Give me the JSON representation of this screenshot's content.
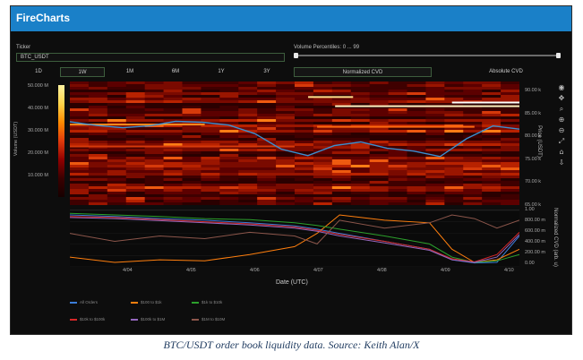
{
  "app": {
    "title": "FireCharts"
  },
  "controls": {
    "ticker_label": "Ticker",
    "ticker_value": "BTC_USDT",
    "volume_label": "Volume Percentiles: 0 ... 99",
    "volume_range": [
      0,
      99
    ],
    "timeframes": [
      "1D",
      "1W",
      "1M",
      "6M",
      "1Y",
      "3Y"
    ],
    "active_timeframe": "1W",
    "cvd_modes": [
      "Normalized CVD",
      "Absolute CVD"
    ],
    "active_cvd_mode": "Normalized CVD"
  },
  "toolbar": {
    "icons": [
      "plotly-logo-icon",
      "pan-icon",
      "zoom-icon",
      "zoom-in-icon",
      "zoom-out-icon",
      "autoscale-icon",
      "reset-axes-icon",
      "download-icon"
    ]
  },
  "colors": {
    "header": "#1a80c8",
    "price_line": "#3a8fd0"
  },
  "chart_data": [
    {
      "type": "heatmap",
      "colorbar_title": "Volume (USDT)",
      "colorbar_ticks": [
        "50.000 M",
        "40.000 M",
        "30.000 M",
        "20.000 M",
        "10.000 M"
      ],
      "y_title": "Price (USDT)",
      "y_ticks": [
        "90.00 k",
        "85.00 k",
        "80.00 k",
        "75.00 k",
        "70.00 k",
        "65.00 k"
      ],
      "ylim": [
        65000,
        92000
      ],
      "price_series": {
        "x": [
          "4/03 00:00",
          "4/03 12:00",
          "4/04 00:00",
          "4/04 12:00",
          "4/05 00:00",
          "4/05 12:00",
          "4/06 00:00",
          "4/06 12:00",
          "4/07 00:00",
          "4/07 06:00",
          "4/07 12:00",
          "4/08 00:00",
          "4/08 12:00",
          "4/09 00:00",
          "4/09 06:00",
          "4/09 12:00",
          "4/10 00:00",
          "4/10 06:00"
        ],
        "y": [
          83200,
          82400,
          81900,
          82300,
          83300,
          83100,
          82500,
          80600,
          77200,
          75800,
          78000,
          78800,
          77400,
          76800,
          75600,
          79500,
          82300,
          81600
        ]
      }
    },
    {
      "type": "line",
      "xlabel": "Date (UTC)",
      "x_ticks": [
        "4/04",
        "4/05",
        "4/06",
        "4/07",
        "4/08",
        "4/09",
        "4/10"
      ],
      "y_title": "Normalized CVD (arb. u)",
      "y_ticks": [
        "1.00",
        "800.00 m",
        "600.00 m",
        "400.00 m",
        "200.00 m",
        "0.00"
      ],
      "ylim": [
        0,
        1
      ],
      "x": [
        0,
        0.1,
        0.2,
        0.3,
        0.4,
        0.5,
        0.55,
        0.6,
        0.7,
        0.8,
        0.85,
        0.9,
        0.95,
        1.0
      ],
      "series": [
        {
          "name": "All Orders",
          "color": "#3b7dd8",
          "values": [
            0.95,
            0.92,
            0.88,
            0.85,
            0.8,
            0.74,
            0.68,
            0.6,
            0.45,
            0.3,
            0.1,
            0.04,
            0.05,
            0.55
          ]
        },
        {
          "name": "$100 to $1k",
          "color": "#ff7f0e",
          "values": [
            0.15,
            0.05,
            0.1,
            0.08,
            0.2,
            0.35,
            0.6,
            0.95,
            0.85,
            0.8,
            0.3,
            0.05,
            0.1,
            0.3
          ]
        },
        {
          "name": "$1k to $10k",
          "color": "#2ca02c",
          "values": [
            0.98,
            0.95,
            0.92,
            0.88,
            0.86,
            0.8,
            0.75,
            0.68,
            0.55,
            0.4,
            0.15,
            0.05,
            0.08,
            0.2
          ]
        },
        {
          "name": "$10k to $100k",
          "color": "#d62728",
          "values": [
            0.92,
            0.9,
            0.86,
            0.82,
            0.78,
            0.72,
            0.66,
            0.58,
            0.45,
            0.3,
            0.12,
            0.06,
            0.2,
            0.62
          ]
        },
        {
          "name": "$100k to $1M",
          "color": "#9467bd",
          "values": [
            0.9,
            0.88,
            0.84,
            0.8,
            0.76,
            0.7,
            0.64,
            0.55,
            0.42,
            0.28,
            0.1,
            0.05,
            0.15,
            0.58
          ]
        },
        {
          "name": "$1M to $10M",
          "color": "#8c564b",
          "values": [
            0.6,
            0.45,
            0.55,
            0.5,
            0.62,
            0.55,
            0.4,
            0.85,
            0.7,
            0.8,
            0.95,
            0.88,
            0.7,
            0.85
          ]
        }
      ]
    }
  ],
  "caption": "BTC/USDT order book liquidity data. Source: Keith Alan/X"
}
